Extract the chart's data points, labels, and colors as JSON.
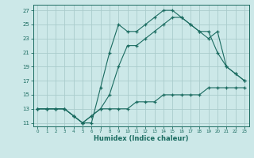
{
  "xlabel": "Humidex (Indice chaleur)",
  "ylabel": "",
  "background_color": "#cce8e8",
  "grid_color": "#aacccc",
  "line_color": "#1a6b60",
  "xlim": [
    -0.5,
    23.5
  ],
  "ylim": [
    10.5,
    27.8
  ],
  "xticks": [
    0,
    1,
    2,
    3,
    4,
    5,
    6,
    7,
    8,
    9,
    10,
    11,
    12,
    13,
    14,
    15,
    16,
    17,
    18,
    19,
    20,
    21,
    22,
    23
  ],
  "yticks": [
    11,
    13,
    15,
    17,
    19,
    21,
    23,
    25,
    27
  ],
  "line1_x": [
    0,
    1,
    2,
    3,
    4,
    5,
    6,
    7,
    8,
    9,
    10,
    11,
    12,
    13,
    14,
    15,
    16,
    17,
    18,
    19,
    20,
    21,
    22,
    23
  ],
  "line1_y": [
    13,
    13,
    13,
    13,
    12,
    11,
    11,
    16,
    21,
    25,
    24,
    24,
    25,
    26,
    27,
    27,
    26,
    25,
    24,
    23,
    24,
    19,
    18,
    17
  ],
  "line2_x": [
    0,
    1,
    2,
    3,
    4,
    5,
    6,
    7,
    8,
    9,
    10,
    11,
    12,
    13,
    14,
    15,
    16,
    17,
    18,
    19,
    20,
    21,
    22,
    23
  ],
  "line2_y": [
    13,
    13,
    13,
    13,
    12,
    11,
    12,
    13,
    13,
    13,
    13,
    14,
    14,
    14,
    15,
    15,
    15,
    15,
    15,
    16,
    16,
    16,
    16,
    16
  ],
  "line3_x": [
    0,
    1,
    2,
    3,
    4,
    5,
    6,
    7,
    8,
    9,
    10,
    11,
    12,
    13,
    14,
    15,
    16,
    17,
    18,
    19,
    20,
    21,
    22,
    23
  ],
  "line3_y": [
    13,
    13,
    13,
    13,
    12,
    11,
    12,
    13,
    15,
    19,
    22,
    22,
    23,
    24,
    25,
    26,
    26,
    25,
    24,
    24,
    21,
    19,
    18,
    17
  ]
}
